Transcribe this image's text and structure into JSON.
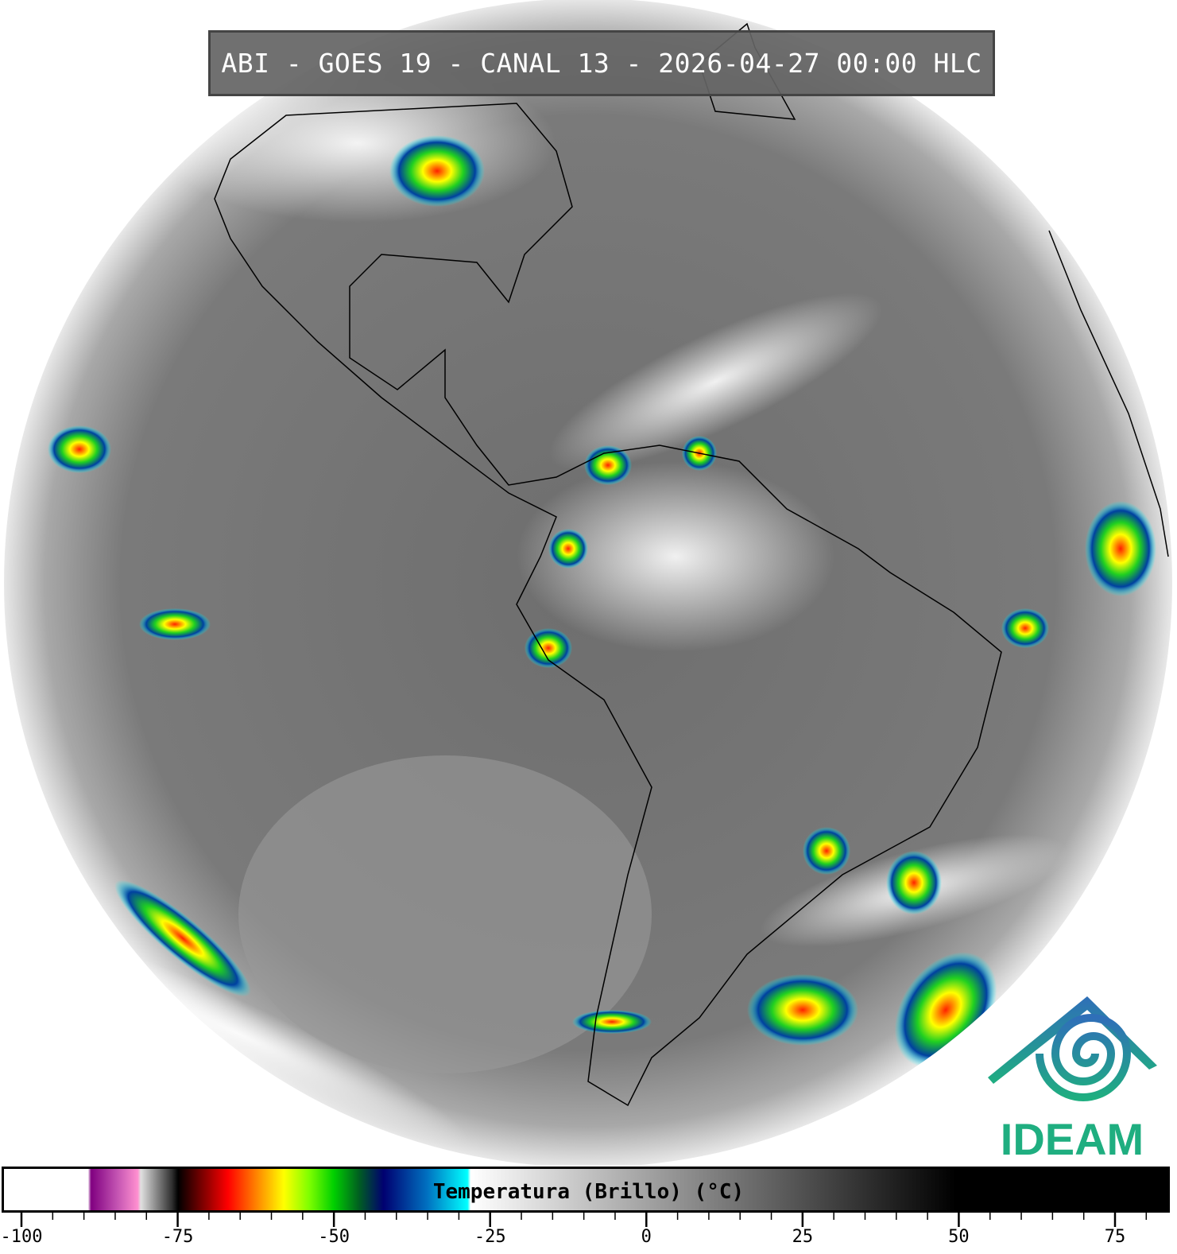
{
  "title": "ABI - GOES 19 - CANAL 13 - 2026-04-27 00:00 HLC",
  "logo": {
    "text": "IDEAM",
    "colors": [
      "#2f6fb8",
      "#1fae80"
    ]
  },
  "colorbar": {
    "label": "Temperatura (Brillo) (°C)",
    "range": [
      -103,
      84
    ],
    "tick_step": 5,
    "major_ticks": [
      -100,
      -75,
      -50,
      -25,
      0,
      25,
      50,
      75
    ],
    "tick_labels": [
      "-100",
      "-75",
      "-50",
      "-25",
      "0",
      "25",
      "50",
      "75"
    ],
    "stops": [
      {
        "v": -103,
        "c": "#ffffff"
      },
      {
        "v": -89.5,
        "c": "#ffffff"
      },
      {
        "v": -89,
        "c": "#800080"
      },
      {
        "v": -85,
        "c": "#c050b0"
      },
      {
        "v": -81.5,
        "c": "#ff90d0"
      },
      {
        "v": -81,
        "c": "#e0e0e0"
      },
      {
        "v": -76,
        "c": "#303030"
      },
      {
        "v": -75,
        "c": "#000000"
      },
      {
        "v": -71,
        "c": "#800000"
      },
      {
        "v": -67,
        "c": "#ff0000"
      },
      {
        "v": -62,
        "c": "#ff9000"
      },
      {
        "v": -58,
        "c": "#ffff00"
      },
      {
        "v": -54,
        "c": "#80ff00"
      },
      {
        "v": -50,
        "c": "#00d000"
      },
      {
        "v": -46,
        "c": "#006020"
      },
      {
        "v": -42,
        "c": "#000070"
      },
      {
        "v": -35,
        "c": "#0070c0"
      },
      {
        "v": -28.5,
        "c": "#00ffff"
      },
      {
        "v": -28,
        "c": "#ffffff"
      },
      {
        "v": 50,
        "c": "#000000"
      },
      {
        "v": 84,
        "c": "#000000"
      }
    ]
  }
}
